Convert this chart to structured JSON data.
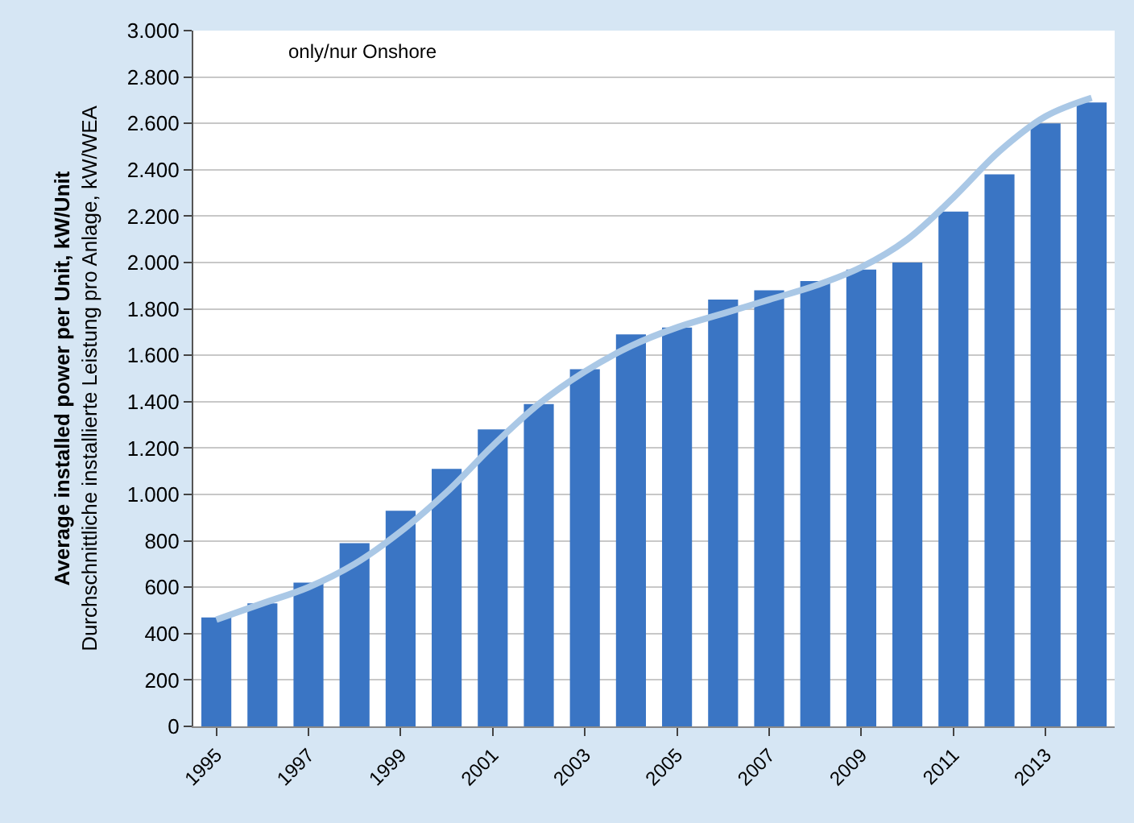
{
  "chart_data": {
    "type": "bar",
    "ylabel": "Average installed power per Unit, kW/Unit\nDurchschnittliche installierte Leistung pro Anlage, kW/WEA",
    "annotations": [
      "only/nur Onshore"
    ],
    "categories": [
      "1995",
      null,
      "1997",
      null,
      "1999",
      null,
      "2001",
      null,
      "2003",
      null,
      "2005",
      null,
      "2007",
      null,
      "2009",
      null,
      "2011",
      null,
      "2013",
      null
    ],
    "series": [
      {
        "color": "#3a75c4",
        "values": [
          470,
          530,
          620,
          790,
          930,
          1110,
          1280,
          1390,
          1540,
          1690,
          1720,
          1840,
          1880,
          1920,
          1970,
          2000,
          2220,
          2380,
          2600,
          2690
        ]
      },
      {
        "type": "line",
        "color": "#aac8e6",
        "values": [
          460,
          530,
          600,
          700,
          840,
          1010,
          1210,
          1390,
          1530,
          1640,
          1720,
          1780,
          1840,
          1900,
          1980,
          2100,
          2280,
          2480,
          2630,
          2710
        ]
      }
    ],
    "ylim": [
      0,
      3000
    ],
    "yticks": [
      0,
      200,
      400,
      600,
      800,
      {
        "value": 1000,
        "label": "1.000"
      },
      {
        "value": 1200,
        "label": "1.200"
      },
      {
        "value": 1400,
        "label": "1.400"
      },
      {
        "value": 1600,
        "label": "1.600"
      },
      {
        "value": 1800,
        "label": "1.800"
      },
      {
        "value": 2000,
        "label": "2.000"
      },
      {
        "value": 2200,
        "label": "2.200"
      },
      {
        "value": 2400,
        "label": "2.400"
      },
      {
        "value": 2600,
        "label": "2.600"
      },
      {
        "value": 2800,
        "label": "2.800"
      },
      {
        "value": 3000,
        "label": "3.000"
      }
    ],
    "grid": "y"
  }
}
